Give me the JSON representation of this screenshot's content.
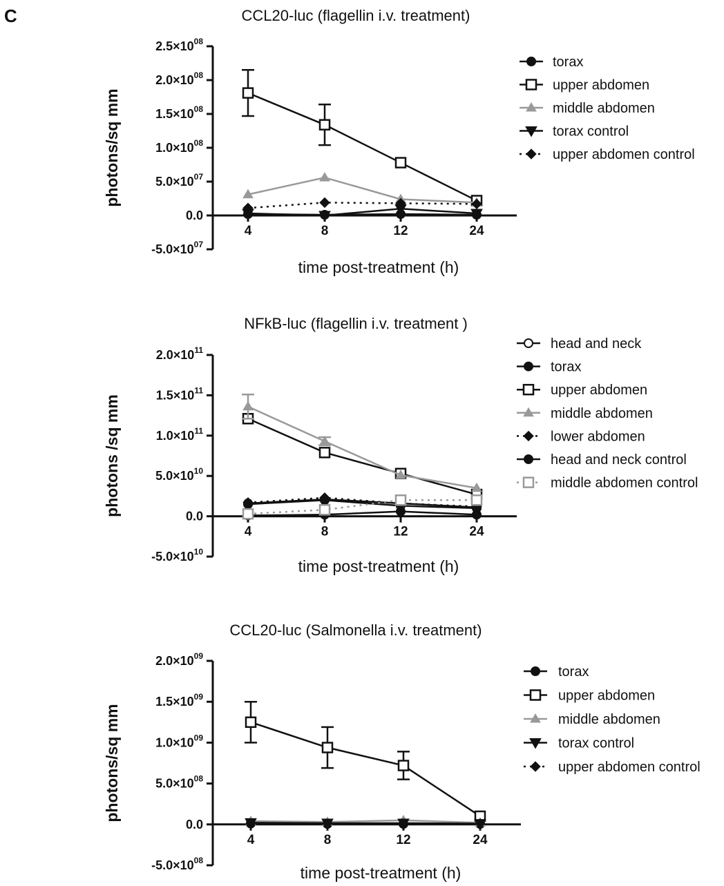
{
  "panel_label": "C",
  "chart_data": [
    {
      "type": "line",
      "title": "CCL20-luc (flagellin i.v. treatment)",
      "xlabel": "time post-treatment (h)",
      "ylabel": "photons/sq mm",
      "categories": [
        "4",
        "8",
        "12",
        "24"
      ],
      "ylim": [
        -50000000,
        250000000
      ],
      "y_ticks": [
        {
          "value": -50000000,
          "mant": "-5.0",
          "exp": "07"
        },
        {
          "value": 0,
          "mant": "0.0",
          "exp": ""
        },
        {
          "value": 50000000,
          "mant": "5.0",
          "exp": "07"
        },
        {
          "value": 100000000,
          "mant": "1.0",
          "exp": "08"
        },
        {
          "value": 150000000,
          "mant": "1.5",
          "exp": "08"
        },
        {
          "value": 200000000,
          "mant": "2.0",
          "exp": "08"
        },
        {
          "value": 250000000,
          "mant": "2.5",
          "exp": "08"
        }
      ],
      "legend_position": "right",
      "series": [
        {
          "name": "torax",
          "color": "#111111",
          "marker": "circle-filled",
          "dash": false,
          "values": [
            2000000,
            1000000,
            2000000,
            1000000
          ],
          "err": [
            0,
            0,
            0,
            0
          ]
        },
        {
          "name": "upper abdomen",
          "color": "#111111",
          "marker": "square-open",
          "dash": false,
          "values": [
            181000000,
            134000000,
            78000000,
            22000000
          ],
          "err": [
            34000000,
            30000000,
            0,
            0
          ]
        },
        {
          "name": "middle abdomen",
          "color": "#999999",
          "marker": "triangle-up",
          "dash": false,
          "values": [
            31000000,
            56000000,
            24000000,
            19000000
          ],
          "err": [
            0,
            0,
            0,
            0
          ]
        },
        {
          "name": "torax control",
          "color": "#111111",
          "marker": "triangle-down",
          "dash": false,
          "values": [
            3000000,
            0,
            10000000,
            3000000
          ],
          "err": [
            0,
            0,
            0,
            0
          ]
        },
        {
          "name": "upper abdomen control",
          "color": "#111111",
          "marker": "diamond-filled",
          "dash": true,
          "values": [
            11000000,
            19000000,
            18000000,
            17000000
          ],
          "err": [
            0,
            0,
            0,
            0
          ]
        }
      ]
    },
    {
      "type": "line",
      "title": "NFkB-luc (flagellin i.v. treatment )",
      "xlabel": "time post-treatment (h)",
      "ylabel": "photons /sq mm",
      "categories": [
        "4",
        "8",
        "12",
        "24"
      ],
      "ylim": [
        -50000000000,
        200000000000
      ],
      "y_ticks": [
        {
          "value": -50000000000,
          "mant": "-5.0",
          "exp": "10"
        },
        {
          "value": 0,
          "mant": "0.0",
          "exp": ""
        },
        {
          "value": 50000000000,
          "mant": "5.0",
          "exp": "10"
        },
        {
          "value": 100000000000,
          "mant": "1.0",
          "exp": "11"
        },
        {
          "value": 150000000000,
          "mant": "1.5",
          "exp": "11"
        },
        {
          "value": 200000000000,
          "mant": "2.0",
          "exp": "11"
        }
      ],
      "legend_position": "right",
      "series": [
        {
          "name": "head and neck",
          "color": "#111111",
          "marker": "circle-open",
          "dash": false,
          "values": [
            15000000000,
            20000000000,
            13000000000,
            10000000000
          ],
          "err": [
            0,
            0,
            0,
            0
          ]
        },
        {
          "name": "torax",
          "color": "#111111",
          "marker": "circle-filled",
          "dash": false,
          "values": [
            16000000000,
            21000000000,
            16000000000,
            11000000000
          ],
          "err": [
            0,
            0,
            0,
            0
          ]
        },
        {
          "name": "upper abdomen",
          "color": "#111111",
          "marker": "square-open",
          "dash": false,
          "values": [
            121000000000,
            79000000000,
            53000000000,
            27000000000
          ],
          "err": [
            0,
            0,
            0,
            0
          ]
        },
        {
          "name": "middle abdomen",
          "color": "#999999",
          "marker": "triangle-up",
          "dash": false,
          "values": [
            136000000000,
            93000000000,
            51000000000,
            35000000000
          ],
          "err": [
            15000000000,
            5000000000,
            0,
            0
          ]
        },
        {
          "name": "lower abdomen",
          "color": "#111111",
          "marker": "diamond-filled",
          "dash": true,
          "values": [
            17000000000,
            23000000000,
            16000000000,
            12000000000
          ],
          "err": [
            0,
            0,
            0,
            0
          ]
        },
        {
          "name": "head and neck control",
          "color": "#111111",
          "marker": "circle-filled",
          "dash": false,
          "values": [
            1000000000,
            2000000000,
            6000000000,
            2000000000
          ],
          "err": [
            0,
            0,
            0,
            0
          ]
        },
        {
          "name": "middle abdomen control",
          "color": "#999999",
          "marker": "square-open",
          "dash": true,
          "values": [
            3000000000,
            8000000000,
            20000000000,
            20000000000
          ],
          "err": [
            0,
            0,
            0,
            0
          ]
        }
      ]
    },
    {
      "type": "line",
      "title": "CCL20-luc (Salmonella i.v. treatment)",
      "xlabel": "time post-treatment (h)",
      "ylabel": "photons/sq mm",
      "categories": [
        "4",
        "8",
        "12",
        "24"
      ],
      "ylim": [
        -500000000,
        2000000000
      ],
      "y_ticks": [
        {
          "value": -500000000,
          "mant": "-5.0",
          "exp": "08"
        },
        {
          "value": 0,
          "mant": "0.0",
          "exp": ""
        },
        {
          "value": 500000000,
          "mant": "5.0",
          "exp": "08"
        },
        {
          "value": 1000000000,
          "mant": "1.0",
          "exp": "09"
        },
        {
          "value": 1500000000,
          "mant": "1.5",
          "exp": "09"
        },
        {
          "value": 2000000000,
          "mant": "2.0",
          "exp": "09"
        }
      ],
      "legend_position": "right",
      "series": [
        {
          "name": "torax",
          "color": "#111111",
          "marker": "circle-filled",
          "dash": false,
          "values": [
            10000000,
            5000000,
            5000000,
            5000000
          ],
          "err": [
            0,
            0,
            0,
            0
          ]
        },
        {
          "name": "upper abdomen",
          "color": "#111111",
          "marker": "square-open",
          "dash": false,
          "values": [
            1250000000,
            940000000,
            720000000,
            100000000
          ],
          "err": [
            250000000,
            250000000,
            170000000,
            0
          ]
        },
        {
          "name": "middle abdomen",
          "color": "#999999",
          "marker": "triangle-up",
          "dash": false,
          "values": [
            40000000,
            30000000,
            50000000,
            20000000
          ],
          "err": [
            0,
            0,
            0,
            0
          ]
        },
        {
          "name": "torax control",
          "color": "#111111",
          "marker": "triangle-down",
          "dash": false,
          "values": [
            20000000,
            15000000,
            15000000,
            10000000
          ],
          "err": [
            0,
            0,
            0,
            0
          ]
        },
        {
          "name": "upper abdomen control",
          "color": "#111111",
          "marker": "diamond-filled",
          "dash": true,
          "values": [
            10000000,
            10000000,
            10000000,
            10000000
          ],
          "err": [
            0,
            0,
            0,
            0
          ]
        }
      ]
    }
  ]
}
